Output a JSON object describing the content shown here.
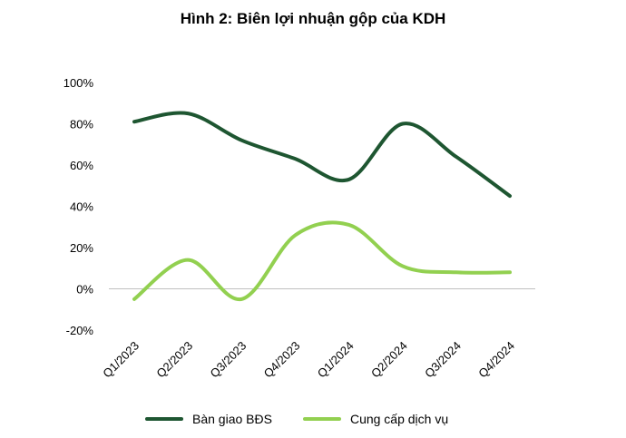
{
  "chart_data": {
    "type": "line",
    "title": "Hình 2: Biên lợi nhuận gộp của KDH",
    "categories": [
      "Q1/2023",
      "Q2/2023",
      "Q3/2023",
      "Q4/2023",
      "Q1/2024",
      "Q2/2024",
      "Q3/2024",
      "Q4/2024"
    ],
    "series": [
      {
        "name": "Bàn giao BĐS",
        "color": "#1e5631",
        "values": [
          81,
          85,
          72,
          63,
          53,
          80,
          64,
          45
        ]
      },
      {
        "name": "Cung cấp dịch vụ",
        "color": "#92d050",
        "values": [
          -5,
          14,
          -5,
          26,
          31,
          11,
          8,
          8
        ]
      }
    ],
    "ylim": [
      -20,
      100
    ],
    "yticks": [
      "-20%",
      "0%",
      "20%",
      "40%",
      "60%",
      "80%",
      "100%"
    ],
    "ytick_values": [
      -20,
      0,
      20,
      40,
      60,
      80,
      100
    ],
    "smooth": true,
    "grid": false,
    "legend_position": "bottom"
  }
}
